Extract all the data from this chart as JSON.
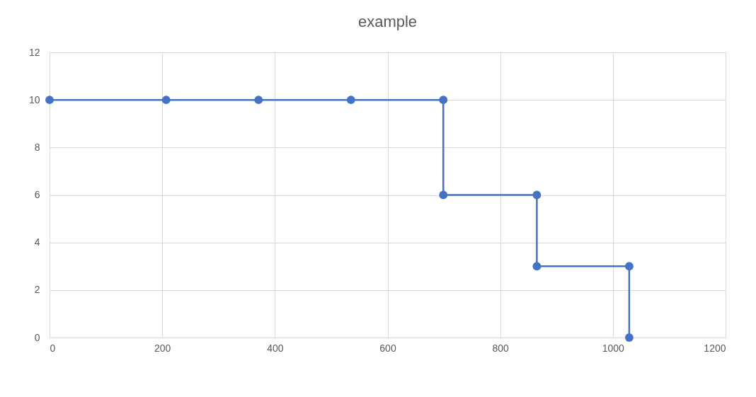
{
  "chart_data": {
    "type": "line",
    "title": "example",
    "x": [
      0,
      207,
      371,
      535,
      699,
      699,
      865,
      865,
      1029,
      1029
    ],
    "series": [
      {
        "color": "#4472c4",
        "values": [
          10,
          10,
          10,
          10,
          10,
          6,
          6,
          3,
          3,
          0
        ]
      }
    ],
    "xlim": [
      0,
      1200
    ],
    "xticks": [
      0,
      200,
      400,
      600,
      800,
      1000,
      1200
    ],
    "ylim": [
      0,
      12
    ],
    "yticks": [
      0,
      2,
      4,
      6,
      8,
      10,
      12
    ],
    "grid": true,
    "legend": false,
    "marker": "circle",
    "line_style": "solid"
  }
}
